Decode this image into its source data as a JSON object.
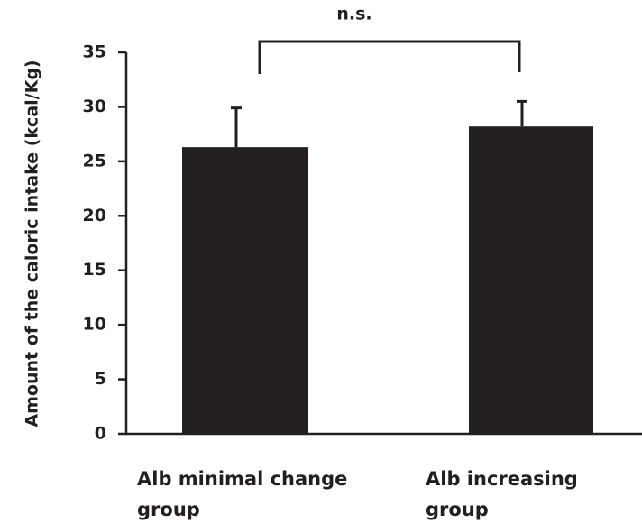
{
  "chart_data": {
    "type": "bar",
    "categories": [
      "Alb minimal change group",
      "Alb increasing group"
    ],
    "values": [
      26.3,
      28.2
    ],
    "errors": [
      3.6,
      2.3
    ],
    "color": "#231f20",
    "y_label": "Amount of the caloric intake (kcal/Kg)",
    "annotation": "n.s.",
    "ylim": [
      0,
      35
    ],
    "yticks": [
      0,
      5,
      10,
      15,
      20,
      25,
      30,
      35
    ],
    "grid": false
  }
}
